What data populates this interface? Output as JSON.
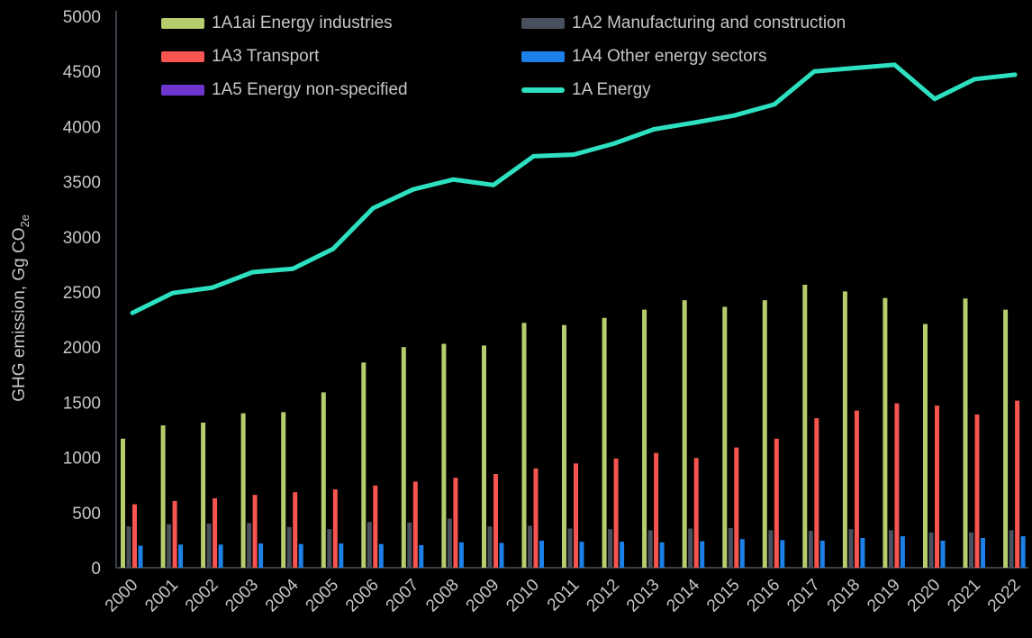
{
  "chart_data": {
    "type": "bar",
    "subtype": "grouped-bars-with-line-overlay",
    "title": "",
    "xlabel": "",
    "ylabel": "GHG emission, Gg CO2e",
    "ylabel_main": "GHG emission, Gg CO",
    "ylabel_sub": "2e",
    "ylim": [
      0,
      5000
    ],
    "yticks": [
      0,
      500,
      1000,
      1500,
      2000,
      2500,
      3000,
      3500,
      4000,
      4500,
      5000
    ],
    "grid": false,
    "legend_position": "top",
    "background_color": "#000000",
    "text_color": "#c6c6c6",
    "axis_color": "#3a4149",
    "categories": [
      "2000",
      "2001",
      "2002",
      "2003",
      "2004",
      "2005",
      "2006",
      "2007",
      "2008",
      "2009",
      "2010",
      "2011",
      "2012",
      "2013",
      "2014",
      "2015",
      "2016",
      "2017",
      "2018",
      "2019",
      "2020",
      "2021",
      "2022"
    ],
    "series": [
      {
        "name": "1A1ai Energy industries",
        "type": "bar",
        "color": "#b6cd6e",
        "values": [
          1170,
          1290,
          1315,
          1400,
          1410,
          1590,
          1860,
          2000,
          2030,
          2015,
          2220,
          2200,
          2265,
          2340,
          2425,
          2365,
          2425,
          2565,
          2505,
          2445,
          2210,
          2440,
          2340
        ]
      },
      {
        "name": "1A2 Manufacturing and construction",
        "type": "bar",
        "color": "#47505c",
        "values": [
          375,
          395,
          400,
          405,
          370,
          350,
          415,
          410,
          445,
          375,
          380,
          355,
          350,
          340,
          355,
          360,
          340,
          335,
          350,
          340,
          320,
          320,
          340
        ]
      },
      {
        "name": "1A3 Transport",
        "type": "bar",
        "color": "#f85450",
        "values": [
          575,
          605,
          630,
          660,
          685,
          710,
          745,
          780,
          815,
          850,
          900,
          945,
          990,
          1040,
          995,
          1090,
          1170,
          1355,
          1425,
          1490,
          1470,
          1390,
          1515
        ]
      },
      {
        "name": "1A4 Other energy sectors",
        "type": "bar",
        "color": "#1d80e8",
        "values": [
          200,
          210,
          210,
          220,
          215,
          220,
          215,
          205,
          230,
          225,
          245,
          235,
          235,
          230,
          240,
          260,
          250,
          245,
          270,
          285,
          245,
          270,
          285
        ]
      },
      {
        "name": "1A5 Energy non-specified",
        "type": "bar",
        "color": "#6d35d0",
        "values": [
          0,
          0,
          0,
          0,
          0,
          0,
          0,
          0,
          0,
          0,
          0,
          0,
          0,
          0,
          0,
          0,
          0,
          0,
          0,
          0,
          0,
          0,
          0
        ]
      },
      {
        "name": "1A Energy",
        "type": "line",
        "color": "#2ce0c0",
        "values": [
          2310,
          2490,
          2540,
          2680,
          2710,
          2890,
          3260,
          3430,
          3520,
          3470,
          3730,
          3745,
          3845,
          3975,
          4035,
          4100,
          4200,
          4500,
          4530,
          4560,
          4250,
          4430,
          4470
        ]
      }
    ]
  }
}
